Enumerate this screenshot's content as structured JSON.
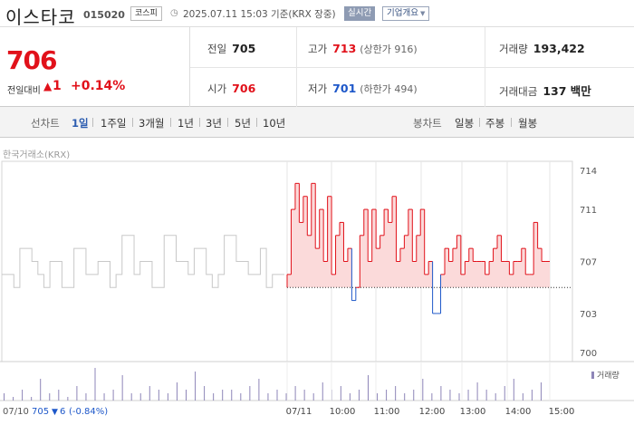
{
  "header": {
    "name": "이스타코",
    "code": "015020",
    "market": "코스피",
    "datetime": "2025.07.11 15:03 기준(KRX 장중)",
    "realtime_label": "실시간",
    "company_info_label": "기업개요"
  },
  "summary": {
    "price": "706",
    "change_label": "전일대비",
    "change_value": "1",
    "change_pct": "+0.14%",
    "prev_close_label": "전일",
    "prev_close": "705",
    "high_label": "고가",
    "high": "713",
    "upper_limit": "(상한가 916)",
    "volume_label": "거래량",
    "volume": "193,422",
    "open_label": "시가",
    "open": "706",
    "low_label": "저가",
    "low": "701",
    "lower_limit": "(하한가 494)",
    "amount_label": "거래대금",
    "amount": "137 백만"
  },
  "period_bar": {
    "line_label": "선차트",
    "line_periods": [
      "1일",
      "1주일",
      "3개월",
      "1년",
      "3년",
      "5년",
      "10년"
    ],
    "active_period": "1일",
    "candle_label": "봉차트",
    "candle_periods": [
      "일봉",
      "주봉",
      "월봉"
    ]
  },
  "chart_source": "한국거래소(KRX)",
  "volume_legend": "거래량",
  "footer_prev": {
    "date": "07/10",
    "price": "705",
    "change": "6",
    "pct": "(-0.84%)"
  },
  "colors": {
    "up": "#e1111a",
    "down": "#1d57c9",
    "prev_line": "#c8c8c8",
    "fill_up": "#fbdada",
    "volume": "#8e86b8"
  },
  "chart_data": {
    "type": "line",
    "ylim": [
      700,
      714
    ],
    "y_ticks": [
      700,
      703,
      707,
      711,
      714
    ],
    "x_ticks": [
      "07/11",
      "10:00",
      "11:00",
      "12:00",
      "13:00",
      "14:00",
      "15:00"
    ],
    "baseline": 705,
    "series": [
      {
        "values": [
          706,
          706,
          705,
          708,
          708,
          707,
          706,
          705,
          707,
          707,
          705,
          705,
          708,
          708,
          706,
          706,
          707,
          707,
          705,
          706,
          709,
          709,
          706,
          707,
          707,
          705,
          705,
          709,
          709,
          707,
          707,
          706,
          708,
          708,
          706,
          705,
          706,
          709,
          709,
          707,
          707,
          706,
          706,
          708,
          705,
          706,
          706
        ]
      },
      {
        "values": [
          706,
          711,
          713,
          710,
          712,
          709,
          713,
          708,
          711,
          707,
          712,
          706,
          709,
          710,
          707,
          708,
          704,
          705,
          709,
          711,
          707,
          711,
          708,
          709,
          711,
          710,
          712,
          707,
          708,
          709,
          711,
          707,
          709,
          711,
          706,
          707,
          703,
          703,
          706,
          708,
          707,
          708,
          709,
          706,
          707,
          708,
          707,
          707,
          707,
          706,
          707,
          708,
          709,
          707,
          707,
          706,
          707,
          707,
          708,
          706,
          706,
          710,
          708,
          707,
          707
        ]
      }
    ],
    "volume": [
      2,
      1,
      3,
      1,
      6,
      2,
      3,
      1,
      4,
      2,
      9,
      2,
      3,
      7,
      2,
      2,
      4,
      3,
      2,
      5,
      3,
      8,
      4,
      2,
      3,
      3,
      2,
      4,
      6,
      2,
      3,
      2,
      4,
      3,
      2,
      5,
      3,
      4,
      2,
      3,
      7,
      2,
      3,
      4,
      2,
      3,
      6,
      2,
      4,
      3,
      2,
      3,
      5,
      3,
      2,
      4,
      6,
      2,
      3,
      5
    ]
  }
}
